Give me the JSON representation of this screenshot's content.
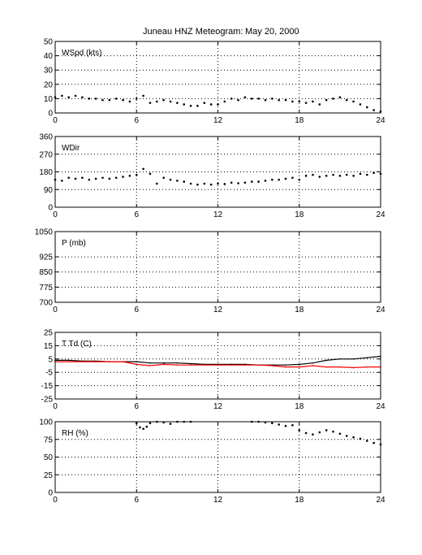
{
  "title": {
    "station": "Juneau HNZ Meteogram:",
    "date": "May 20, 2000"
  },
  "colors": {
    "series_primary": "#000000",
    "dewpoint": "#ff0000",
    "grid": "#000000",
    "background": "#ffffff"
  },
  "chart_data": [
    {
      "type": "scatter",
      "label": "WSpd (kts)",
      "xlim": [
        0,
        24
      ],
      "ylim": [
        0,
        50
      ],
      "xticks": [
        0,
        6,
        12,
        18,
        24
      ],
      "yticks": [
        0,
        10,
        20,
        30,
        40,
        50
      ],
      "grid": true,
      "series": [
        {
          "color": "#000000",
          "x": [
            0,
            0.5,
            1,
            1.5,
            2,
            2.5,
            3,
            3.5,
            4,
            4.5,
            5,
            5.5,
            6,
            6.5,
            7,
            7.5,
            8,
            8.5,
            9,
            9.5,
            10,
            10.5,
            11,
            11.5,
            12,
            12.5,
            13,
            13.5,
            14,
            14.5,
            15,
            15.5,
            16,
            16.5,
            17,
            17.5,
            18,
            18.5,
            19,
            19.5,
            20,
            20.5,
            21,
            21.5,
            22,
            22.5,
            23,
            23.5,
            24
          ],
          "y": [
            11,
            12,
            11,
            12,
            11,
            10,
            10,
            9,
            9,
            10,
            9,
            8,
            10,
            12,
            7,
            8,
            9,
            8,
            7,
            6,
            5,
            5,
            7,
            6,
            6,
            8,
            10,
            9,
            11,
            10,
            10,
            9,
            10,
            9,
            9,
            8,
            8,
            7,
            8,
            6,
            9,
            10,
            11,
            9,
            8,
            6,
            4,
            2,
            1
          ]
        }
      ]
    },
    {
      "type": "scatter",
      "label": "WDir",
      "xlim": [
        0,
        24
      ],
      "ylim": [
        0,
        360
      ],
      "xticks": [
        0,
        6,
        12,
        18,
        24
      ],
      "yticks": [
        0,
        90,
        180,
        270,
        360
      ],
      "grid": true,
      "series": [
        {
          "color": "#000000",
          "x": [
            0,
            0.5,
            1,
            1.5,
            2,
            2.5,
            3,
            3.5,
            4,
            4.5,
            5,
            5.5,
            6,
            6.5,
            7,
            7.5,
            8,
            8.5,
            9,
            9.5,
            10,
            10.5,
            11,
            11.5,
            12,
            12.5,
            13,
            13.5,
            14,
            14.5,
            15,
            15.5,
            16,
            16.5,
            17,
            17.5,
            18,
            18.5,
            19,
            19.5,
            20,
            20.5,
            21,
            21.5,
            22,
            22.5,
            23,
            23.5,
            24
          ],
          "y": [
            140,
            135,
            150,
            145,
            150,
            140,
            145,
            150,
            145,
            150,
            155,
            160,
            165,
            195,
            170,
            120,
            150,
            140,
            135,
            130,
            120,
            115,
            120,
            115,
            120,
            118,
            125,
            122,
            125,
            130,
            130,
            135,
            140,
            140,
            145,
            150,
            140,
            160,
            165,
            155,
            160,
            165,
            160,
            165,
            160,
            170,
            165,
            175,
            170
          ]
        }
      ]
    },
    {
      "type": "scatter",
      "label": "P (mb)",
      "xlim": [
        0,
        24
      ],
      "ylim": [
        700,
        1050
      ],
      "xticks": [
        0,
        6,
        12,
        18,
        24
      ],
      "yticks": [
        700,
        775,
        850,
        925,
        1050
      ],
      "ytick_labels": [
        "700",
        "775",
        "850",
        "925",
        "1050"
      ],
      "grid": true,
      "series": []
    },
    {
      "type": "line",
      "label": "T Td (C)",
      "xlim": [
        0,
        24
      ],
      "ylim": [
        -25,
        25
      ],
      "xticks": [
        0,
        6,
        12,
        18,
        24
      ],
      "yticks": [
        -25,
        -15,
        -5,
        5,
        15,
        25
      ],
      "grid": true,
      "series": [
        {
          "color": "#000000",
          "x": [
            0,
            1,
            2,
            3,
            4,
            5,
            6,
            7,
            8,
            9,
            10,
            11,
            12,
            13,
            14,
            15,
            16,
            17,
            18,
            19,
            20,
            21,
            22,
            23,
            24
          ],
          "y": [
            4,
            4,
            3.5,
            3.5,
            3,
            3,
            3,
            2,
            2,
            2,
            1.5,
            1,
            1,
            1,
            1,
            0.5,
            0.5,
            0.5,
            1,
            2,
            4,
            5,
            5,
            6,
            7
          ]
        },
        {
          "color": "#ff0000",
          "x": [
            0,
            1,
            2,
            3,
            4,
            5,
            6,
            7,
            8,
            9,
            10,
            11,
            12,
            13,
            14,
            15,
            16,
            17,
            18,
            19,
            20,
            21,
            22,
            23,
            24
          ],
          "y": [
            3,
            3,
            3,
            3,
            3,
            3,
            1,
            0,
            1,
            0.5,
            0.5,
            0.5,
            0.5,
            0.5,
            0.5,
            0.5,
            0,
            -1,
            -1,
            0,
            -1,
            -1,
            -1.5,
            -1,
            -1
          ]
        }
      ]
    },
    {
      "type": "scatter",
      "label": "RH (%)",
      "xlim": [
        0,
        24
      ],
      "ylim": [
        0,
        100
      ],
      "xticks": [
        0,
        6,
        12,
        18,
        24
      ],
      "yticks": [
        0,
        25,
        50,
        75,
        100
      ],
      "grid": true,
      "series": [
        {
          "color": "#000000",
          "x": [
            6,
            6.25,
            6.5,
            6.75,
            7,
            7.5,
            8,
            8.5,
            9,
            9.5,
            10,
            14.5,
            15,
            15.5,
            16,
            16.5,
            17,
            17.5,
            18,
            18.5,
            19,
            19.5,
            20,
            20.5,
            21,
            21.5,
            22,
            22.5,
            23,
            23.5,
            24
          ],
          "y": [
            98,
            92,
            90,
            93,
            98,
            100,
            99,
            97,
            100,
            100,
            100,
            100,
            100,
            99,
            98,
            96,
            94,
            95,
            88,
            84,
            82,
            85,
            88,
            86,
            83,
            80,
            78,
            76,
            73,
            70,
            68
          ]
        }
      ]
    }
  ]
}
